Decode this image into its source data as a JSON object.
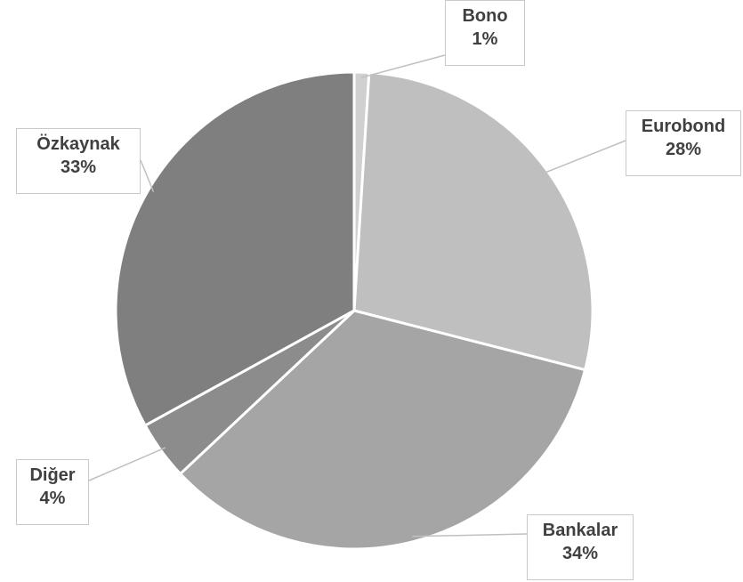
{
  "chart_data": {
    "type": "pie",
    "title": "",
    "slices": [
      {
        "label": "Bono",
        "value": 1,
        "value_label": "1%",
        "color": "#d0d0d0"
      },
      {
        "label": "Eurobond",
        "value": 28,
        "value_label": "28%",
        "color": "#bfbfbf"
      },
      {
        "label": "Bankalar",
        "value": 34,
        "value_label": "34%",
        "color": "#a5a5a5"
      },
      {
        "label": "Diğer",
        "value": 4,
        "value_label": "4%",
        "color": "#8c8c8c"
      },
      {
        "label": "Özkaynak",
        "value": 33,
        "value_label": "33%",
        "color": "#7f7f7f"
      }
    ],
    "slice_border_color": "#ffffff",
    "leader_line_color": "#c0c0c0"
  }
}
